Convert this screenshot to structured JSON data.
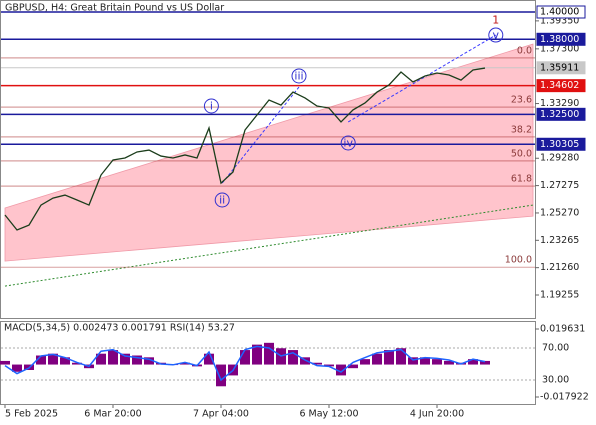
{
  "chart_data": [
    {
      "type": "line",
      "title": "GBPUSD, H4:  Great Britain Pound vs US Dollar",
      "color": "#1b3d1b",
      "categories": [
        "5 Feb 2025",
        null,
        null,
        null,
        null,
        null,
        null,
        null,
        null,
        "6 Mar 20:00",
        null,
        null,
        null,
        null,
        null,
        null,
        null,
        null,
        "7 Apr 04:00",
        null,
        null,
        null,
        null,
        null,
        null,
        null,
        null,
        "6 May 12:00",
        null,
        null,
        null,
        null,
        null,
        null,
        null,
        null,
        "4 Jun 20:00",
        null,
        null,
        null,
        null
      ],
      "series": [
        {
          "color": "#1b3d1b",
          "values": [
            1.2512,
            1.2402,
            1.2438,
            1.2585,
            1.2636,
            1.2658,
            1.2622,
            1.2585,
            1.2805,
            1.2915,
            1.293,
            1.2974,
            1.2988,
            1.2944,
            1.293,
            1.2952,
            1.293,
            1.315,
            1.2746,
            1.2827,
            1.3135,
            1.3245,
            1.3355,
            1.3318,
            1.3413,
            1.337,
            1.3311,
            1.3296,
            1.3194,
            1.3282,
            1.3333,
            1.3413,
            1.3465,
            1.356,
            1.3487,
            1.3531,
            1.3553,
            1.3538,
            1.3501,
            1.3575,
            1.3589
          ]
        }
      ],
      "ylim": [
        1.1757,
        1.4088
      ],
      "yticks": [
        {
          "value": 1.3935,
          "label": "1.39350"
        },
        {
          "value": 1.373,
          "label": "1.37300"
        },
        {
          "value": 1.3329,
          "label": "1.33290"
        },
        {
          "value": 1.2928,
          "label": "1.29280"
        },
        {
          "value": 1.27275,
          "label": "1.27275"
        },
        {
          "value": 1.2527,
          "label": "1.25270"
        },
        {
          "value": 1.23265,
          "label": "1.23265"
        },
        {
          "value": 1.2126,
          "label": "1.21260"
        },
        {
          "value": 1.19255,
          "label": "1.19255"
        }
      ],
      "levels": [
        {
          "value": 1.4,
          "label": "1.40000",
          "color": "#1a1a9c",
          "box": "#ffffff"
        },
        {
          "value": 1.38,
          "label": "1.38000",
          "color": "#1a1a9c",
          "box": "#1a1a9c"
        },
        {
          "value": 1.35911,
          "label": "1.35911",
          "color": "#c8c8c8",
          "box": "#c8c8c8"
        },
        {
          "value": 1.34602,
          "label": "1.34602",
          "color": "#e01010",
          "box": "#e01010"
        },
        {
          "value": 1.325,
          "label": "1.32500",
          "color": "#1a1a9c",
          "box": "#1a1a9c"
        },
        {
          "value": 1.30305,
          "label": "1.30305",
          "color": "#1a1a9c",
          "box": "#1a1a9c"
        }
      ],
      "fib_levels": [
        {
          "label": "0.0",
          "value": 1.3663
        },
        {
          "label": "23.6",
          "value": 1.3303
        },
        {
          "label": "38.2",
          "value": 1.3084
        },
        {
          "label": "50.0",
          "value": 1.2908
        },
        {
          "label": "61.8",
          "value": 1.2724
        },
        {
          "label": "100.0",
          "value": 1.213
        }
      ],
      "channel": {
        "upper": [
          1.2563,
          1.3765
        ],
        "lower": [
          1.2174,
          1.2504
        ],
        "color": "#ffc4cc"
      },
      "trend_line": {
        "values": [
          1.1991,
          1.2585
        ],
        "color": "#2e8b2e"
      },
      "wave_lines": [
        {
          "from": [
            18.1,
            1.2746
          ],
          "to": [
            24.5,
            1.345
          ]
        },
        {
          "from": [
            28.6,
            1.3194
          ],
          "to": [
            40.9,
            1.3831
          ]
        }
      ],
      "waves": [
        {
          "text": "i",
          "at": 17.2,
          "value": 1.3311
        },
        {
          "text": "ii",
          "at": 18.1,
          "value": 1.2622
        },
        {
          "text": "iii",
          "at": 24.5,
          "value": 1.3531
        },
        {
          "text": "iv",
          "at": 28.6,
          "value": 1.304
        },
        {
          "text": "v",
          "at": 40.9,
          "value": 1.3831
        },
        {
          "text": "1",
          "at": 40.9,
          "value": 1.3941,
          "color": "#c01818"
        }
      ]
    },
    {
      "type": "bar",
      "title": "MACD(5,34,5) 0.002473 0.001791 RSI(14) 53.27",
      "series": [
        {
          "color": "#800080",
          "values": [
            0.002,
            -0.004,
            -0.003,
            0.005,
            0.006,
            0.004,
            0.001,
            -0.002,
            0.006,
            0.008,
            0.006,
            0.005,
            0.004,
            0.001,
            0,
            0.001,
            -0.001,
            0.006,
            -0.012,
            -0.006,
            0.008,
            0.011,
            0.012,
            0.009,
            0.008,
            0.004,
            0.001,
            -0.001,
            -0.006,
            -0.002,
            0.003,
            0.006,
            0.008,
            0.009,
            0.004,
            0.004,
            0.003,
            0.002,
            0.001,
            0.003,
            0.002
          ]
        },
        {
          "color": "#1e64ff",
          "axis": "y2",
          "values": [
            48,
            38,
            45,
            60,
            62,
            58,
            52,
            47,
            66,
            68,
            60,
            58,
            56,
            50,
            49,
            52,
            48,
            65,
            30,
            42,
            68,
            72,
            70,
            60,
            64,
            55,
            48,
            47,
            40,
            52,
            58,
            64,
            66,
            68,
            55,
            58,
            57,
            55,
            50,
            56,
            53
          ]
        }
      ],
      "ylim": [
        -0.02123,
        0.0235
      ],
      "yticks": [
        0.019631,
        -0.017922
      ],
      "y2lim": [
        1.25,
        102.5
      ],
      "y2ticks": [
        {
          "value": 70,
          "label": "70.00"
        },
        {
          "value": 30,
          "label": "30.00"
        }
      ]
    }
  ]
}
